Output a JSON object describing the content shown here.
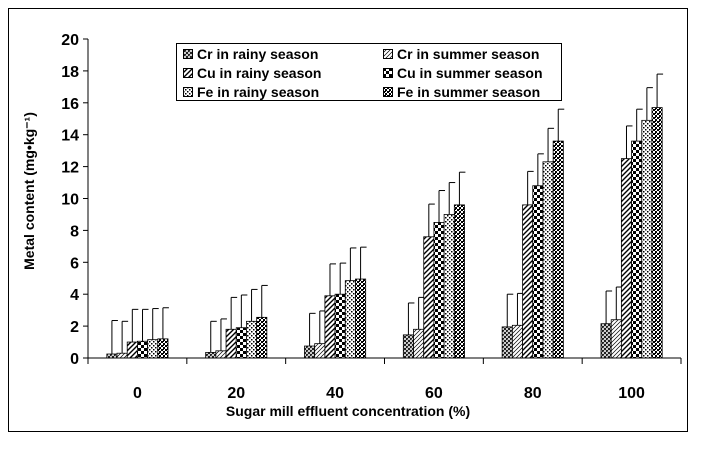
{
  "chart_data": {
    "type": "bar",
    "xlabel": "Sugar mill effluent concentration (%)",
    "ylabel": "Metal content (mg•kg⁻¹)",
    "categories": [
      "0",
      "20",
      "40",
      "60",
      "80",
      "100"
    ],
    "ylim": [
      0,
      20
    ],
    "yticks": [
      "0",
      "2",
      "4",
      "6",
      "8",
      "10",
      "12",
      "14",
      "16",
      "18",
      "20"
    ],
    "grid": false,
    "legend_position": "top",
    "series": [
      {
        "name": "Cr in rainy season",
        "values": [
          0.25,
          0.35,
          0.75,
          1.45,
          1.95,
          2.15
        ],
        "errors": [
          2.1,
          1.95,
          2.05,
          2.0,
          2.05,
          2.05
        ]
      },
      {
        "name": "Cr in summer season",
        "values": [
          0.3,
          0.45,
          0.9,
          1.8,
          2.05,
          2.4
        ],
        "errors": [
          2.0,
          2.0,
          2.05,
          2.0,
          2.0,
          2.05
        ]
      },
      {
        "name": "Cu in rainy season",
        "values": [
          1.0,
          1.8,
          3.9,
          7.6,
          9.6,
          12.5
        ],
        "errors": [
          2.05,
          2.0,
          2.0,
          2.05,
          2.1,
          2.05
        ]
      },
      {
        "name": "Cu in summer season",
        "values": [
          1.05,
          1.9,
          4.0,
          8.5,
          10.8,
          13.6
        ],
        "errors": [
          2.0,
          2.05,
          1.95,
          2.0,
          2.0,
          2.0
        ]
      },
      {
        "name": "Fe in rainy season",
        "values": [
          1.15,
          2.3,
          4.85,
          9.0,
          12.3,
          14.9
        ],
        "errors": [
          1.95,
          2.0,
          2.05,
          2.0,
          2.1,
          2.05
        ]
      },
      {
        "name": "Fe in summer season",
        "values": [
          1.2,
          2.55,
          4.95,
          9.6,
          13.6,
          15.7
        ],
        "errors": [
          1.95,
          2.0,
          2.0,
          2.05,
          2.0,
          2.1
        ]
      }
    ]
  }
}
